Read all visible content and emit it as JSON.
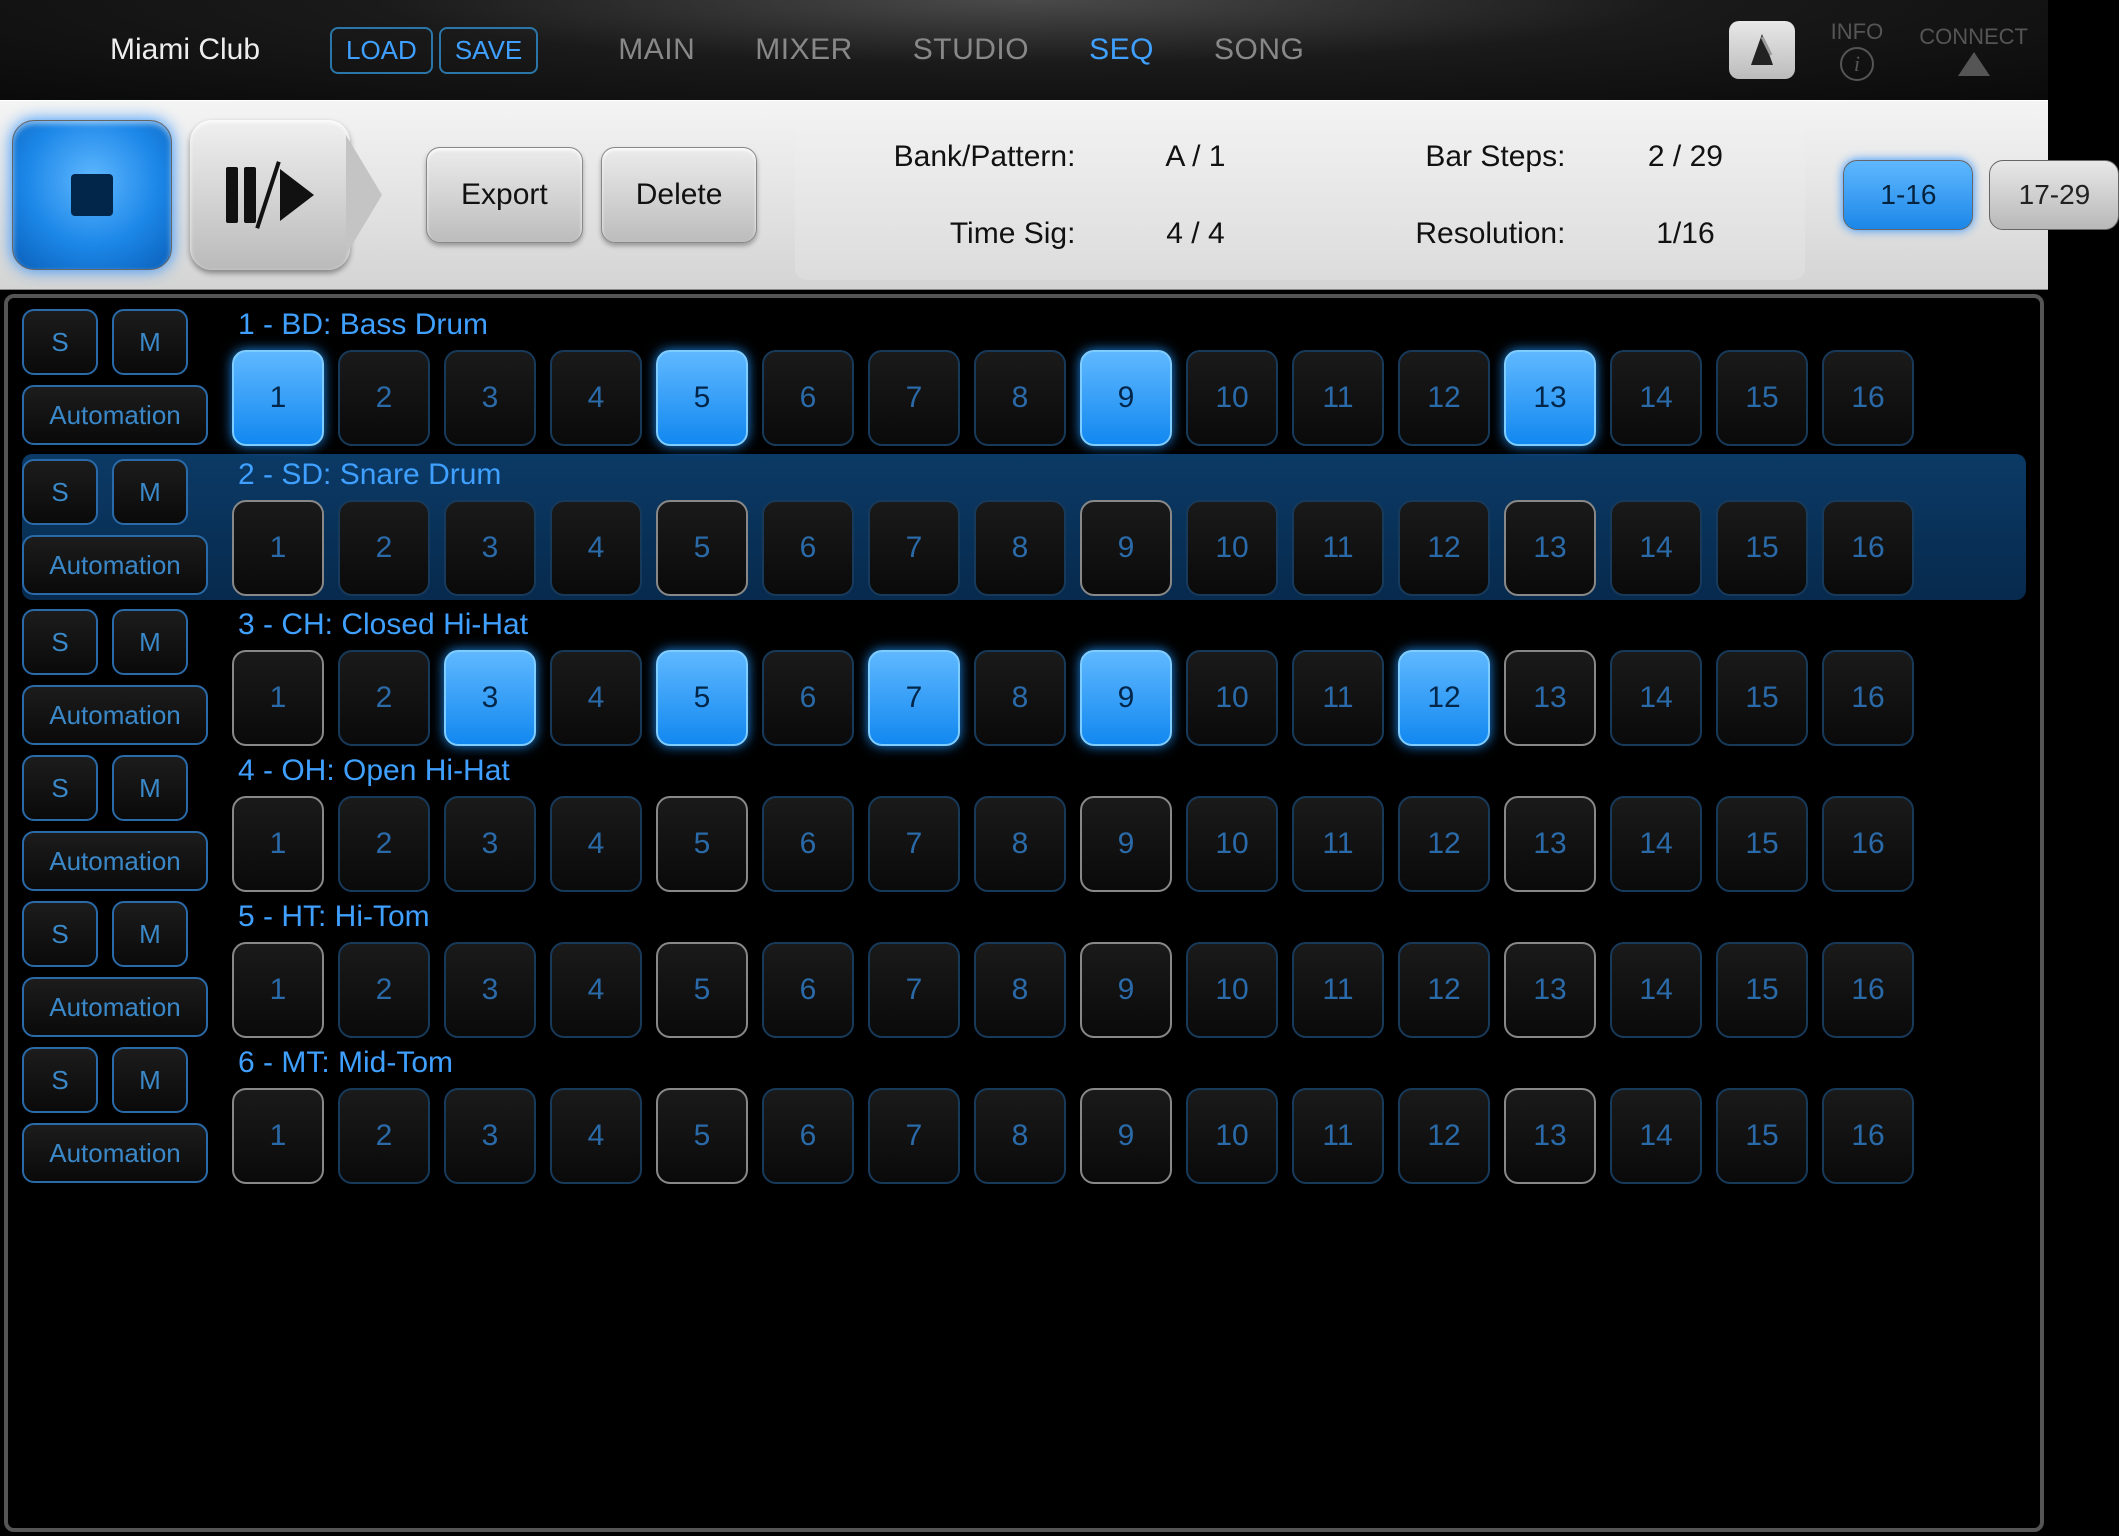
{
  "colors": {
    "accent_blue": "#3fa0ff",
    "step_on_bg": "#1c87e8",
    "step_off_border": "#173a5a",
    "step_beat_border": "#888888",
    "background": "#000000"
  },
  "menubar": {
    "preset_name": "Miami Club",
    "load_label": "LOAD",
    "save_label": "SAVE",
    "tabs": [
      "MAIN",
      "MIXER",
      "STUDIO",
      "SEQ",
      "SONG"
    ],
    "active_tab_index": 3,
    "info_label": "INFO",
    "connect_label": "CONNECT"
  },
  "toolbar": {
    "export_label": "Export",
    "delete_label": "Delete",
    "labels": {
      "bank_pattern": "Bank/Pattern:",
      "bar_steps": "Bar Steps:",
      "time_sig": "Time Sig:",
      "resolution": "Resolution:"
    },
    "values": {
      "bank_pattern": "A / 1",
      "bar_steps": "2 / 29",
      "time_sig": "4 / 4",
      "resolution": "1/16"
    },
    "range_buttons": [
      "1-16",
      "17-29"
    ],
    "active_range_index": 0
  },
  "sequencer": {
    "step_count": 16,
    "beat_steps": [
      1,
      5,
      9,
      13
    ],
    "selected_track_index": 1,
    "side_labels": {
      "solo": "S",
      "mute": "M",
      "automation": "Automation"
    },
    "tracks": [
      {
        "title": "1 - BD: Bass Drum",
        "on_steps": [
          1,
          5,
          9,
          13
        ]
      },
      {
        "title": "2 - SD: Snare Drum",
        "on_steps": []
      },
      {
        "title": "3 - CH: Closed Hi-Hat",
        "on_steps": [
          3,
          5,
          7,
          9,
          12
        ]
      },
      {
        "title": "4 - OH: Open Hi-Hat",
        "on_steps": []
      },
      {
        "title": "5 - HT: Hi-Tom",
        "on_steps": []
      },
      {
        "title": "6 - MT: Mid-Tom",
        "on_steps": []
      }
    ]
  }
}
